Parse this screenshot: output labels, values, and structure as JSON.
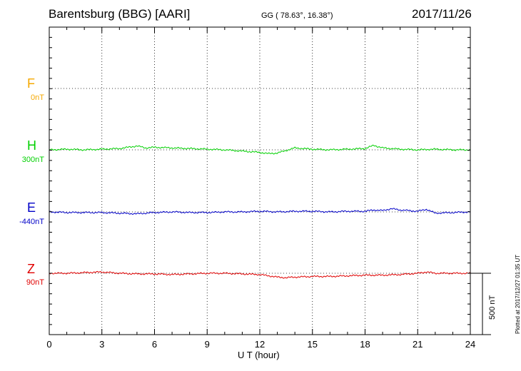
{
  "header": {
    "station": "Barentsburg (BBG)  [AARI]",
    "coords": "GG ( 78.63°,  16.38°)",
    "date": "2017/11/26"
  },
  "footer": {
    "plotted": "Plotted at 2017/12/27 01:35 UT"
  },
  "chart_data": {
    "type": "line",
    "xlabel": "U T (hour)",
    "xlim": [
      0,
      24
    ],
    "xticks": [
      0,
      3,
      6,
      9,
      12,
      15,
      18,
      21,
      24
    ],
    "grid": true,
    "scale_bar": {
      "value": 500,
      "label": "500 nT"
    },
    "colors": {
      "F": "#f5a800",
      "H": "#00d000",
      "E": "#0000c8",
      "Z": "#e00000"
    },
    "components": [
      {
        "name": "F",
        "baseline": "0nT",
        "color": "#f5a800",
        "x": [],
        "values": []
      },
      {
        "name": "H",
        "baseline": "300nT",
        "color": "#00d000",
        "x": [
          0,
          1,
          2,
          3,
          4,
          5,
          5.5,
          6,
          7,
          8,
          9,
          10,
          11,
          12,
          12.5,
          13,
          14,
          14.5,
          15,
          16,
          17,
          18,
          18.5,
          19,
          20,
          21,
          22,
          23,
          24
        ],
        "values": [
          0,
          2,
          0,
          2,
          4,
          12,
          6,
          8,
          6,
          4,
          2,
          0,
          -4,
          -8,
          -12,
          -10,
          6,
          4,
          2,
          0,
          2,
          4,
          14,
          6,
          2,
          0,
          2,
          0,
          0
        ]
      },
      {
        "name": "E",
        "baseline": "-440nT",
        "color": "#0000c8",
        "x": [
          0,
          1,
          2,
          3,
          4,
          5,
          6,
          7,
          8,
          9,
          10,
          11,
          12,
          13,
          14,
          15,
          16,
          17,
          18,
          18.5,
          19,
          19.5,
          20,
          21,
          21.5,
          22,
          23,
          24
        ],
        "values": [
          0,
          -2,
          -2,
          -2,
          -4,
          -6,
          -2,
          0,
          -2,
          -2,
          0,
          0,
          2,
          0,
          2,
          2,
          0,
          2,
          2,
          6,
          4,
          10,
          6,
          2,
          8,
          -4,
          -2,
          0
        ]
      },
      {
        "name": "Z",
        "baseline": "90nT",
        "color": "#e00000",
        "x": [
          0,
          1,
          2,
          3,
          4,
          5,
          6,
          7,
          8,
          9,
          10,
          11,
          12,
          13,
          13.5,
          14,
          15,
          16,
          17,
          18,
          19,
          20,
          21,
          21.5,
          22,
          23,
          24
        ],
        "values": [
          0,
          0,
          2,
          4,
          0,
          -2,
          -2,
          -4,
          -2,
          0,
          0,
          -2,
          -4,
          -12,
          -14,
          -12,
          -10,
          -10,
          -8,
          -6,
          -6,
          -4,
          0,
          4,
          0,
          0,
          0
        ]
      }
    ]
  }
}
